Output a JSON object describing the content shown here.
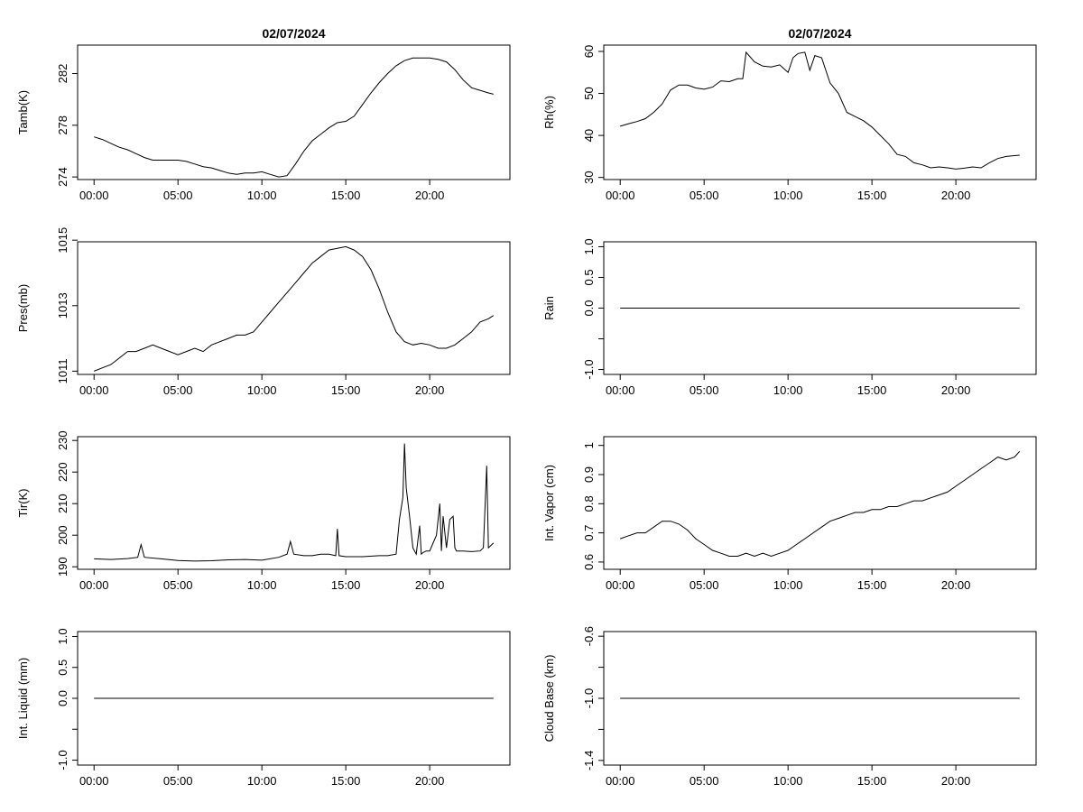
{
  "chart_data": [
    {
      "type": "line",
      "title": "02/07/2024",
      "ylabel": "Tamb(K)",
      "x_ticks": [
        "00:00",
        "05:00",
        "10:00",
        "15:00",
        "20:00"
      ],
      "y_ticks": [
        274,
        278,
        282
      ],
      "ylim": [
        273.8,
        284.2
      ],
      "series": [
        {
          "x": [
            0,
            0.5,
            1,
            1.5,
            2,
            2.5,
            3,
            3.5,
            4,
            4.5,
            5,
            5.5,
            6,
            6.5,
            7,
            7.5,
            8,
            8.5,
            9,
            9.5,
            10,
            10.5,
            11,
            11.5,
            12,
            12.5,
            13,
            13.5,
            14,
            14.5,
            15,
            15.5,
            16,
            16.5,
            17,
            17.5,
            18,
            18.5,
            19,
            19.5,
            20,
            20.5,
            21,
            21.5,
            22,
            22.5,
            23,
            23.5,
            23.8
          ],
          "y": [
            277.1,
            276.9,
            276.6,
            276.3,
            276.1,
            275.8,
            275.5,
            275.3,
            275.3,
            275.3,
            275.3,
            275.2,
            275.0,
            274.8,
            274.7,
            274.5,
            274.3,
            274.2,
            274.3,
            274.3,
            274.4,
            274.2,
            274.0,
            274.1,
            275.0,
            276.0,
            276.8,
            277.3,
            277.8,
            278.2,
            278.3,
            278.7,
            279.6,
            280.5,
            281.3,
            282.0,
            282.6,
            283.0,
            283.2,
            283.2,
            283.2,
            283.1,
            282.9,
            282.3,
            281.5,
            280.9,
            280.7,
            280.5,
            280.4
          ]
        }
      ]
    },
    {
      "type": "line",
      "title": "02/07/2024",
      "ylabel": "Rh(%)",
      "x_ticks": [
        "00:00",
        "05:00",
        "10:00",
        "15:00",
        "20:00"
      ],
      "y_ticks": [
        30,
        40,
        50,
        60
      ],
      "ylim": [
        29.5,
        61.5
      ],
      "series": [
        {
          "x": [
            0,
            0.5,
            1,
            1.5,
            2,
            2.5,
            3,
            3.5,
            4,
            4.5,
            5,
            5.5,
            6,
            6.5,
            7,
            7.3,
            7.5,
            8,
            8.5,
            9,
            9.5,
            10,
            10.3,
            10.6,
            11,
            11.3,
            11.6,
            12,
            12.5,
            13,
            13.5,
            14,
            14.5,
            15,
            15.5,
            16,
            16.5,
            17,
            17.5,
            18,
            18.5,
            19,
            19.5,
            20,
            20.5,
            21,
            21.5,
            22,
            22.5,
            23,
            23.5,
            23.8
          ],
          "y": [
            42.2,
            42.8,
            43.3,
            44.0,
            45.5,
            47.5,
            50.8,
            52.0,
            52.0,
            51.3,
            51.0,
            51.5,
            53.0,
            52.8,
            53.5,
            53.5,
            59.8,
            57.5,
            56.5,
            56.3,
            56.8,
            55.0,
            58.5,
            59.5,
            59.8,
            55.5,
            59.0,
            58.5,
            52.5,
            50.0,
            45.5,
            44.5,
            43.5,
            42.0,
            40.0,
            38.0,
            35.5,
            35.0,
            33.5,
            33.0,
            32.3,
            32.5,
            32.3,
            32.0,
            32.2,
            32.5,
            32.3,
            33.5,
            34.5,
            35.0,
            35.2,
            35.3
          ]
        }
      ]
    },
    {
      "type": "line",
      "ylabel": "Pres(mb)",
      "x_ticks": [
        "00:00",
        "05:00",
        "10:00",
        "15:00",
        "20:00"
      ],
      "y_ticks": [
        1011,
        1013,
        1015
      ],
      "ylim": [
        1010.9,
        1014.95
      ],
      "series": [
        {
          "x": [
            0,
            0.5,
            1,
            1.5,
            2,
            2.5,
            3,
            3.5,
            4,
            4.5,
            5,
            5.5,
            6,
            6.5,
            7,
            7.5,
            8,
            8.5,
            9,
            9.5,
            10,
            10.5,
            11,
            11.5,
            12,
            12.5,
            13,
            13.5,
            14,
            14.5,
            15,
            15.5,
            16,
            16.5,
            17,
            17.5,
            18,
            18.5,
            19,
            19.5,
            20,
            20.5,
            21,
            21.5,
            22,
            22.5,
            23,
            23.5,
            23.8
          ],
          "y": [
            1011.0,
            1011.1,
            1011.2,
            1011.4,
            1011.6,
            1011.6,
            1011.7,
            1011.8,
            1011.7,
            1011.6,
            1011.5,
            1011.6,
            1011.7,
            1011.6,
            1011.8,
            1011.9,
            1012.0,
            1012.1,
            1012.1,
            1012.2,
            1012.5,
            1012.8,
            1013.1,
            1013.4,
            1013.7,
            1014.0,
            1014.3,
            1014.5,
            1014.7,
            1014.75,
            1014.8,
            1014.7,
            1014.5,
            1014.1,
            1013.5,
            1012.8,
            1012.2,
            1011.9,
            1011.8,
            1011.85,
            1011.8,
            1011.7,
            1011.7,
            1011.8,
            1012.0,
            1012.2,
            1012.5,
            1012.6,
            1012.7
          ]
        }
      ]
    },
    {
      "type": "line",
      "ylabel": "Rain",
      "x_ticks": [
        "00:00",
        "05:00",
        "10:00",
        "15:00",
        "20:00"
      ],
      "y_ticks": [
        -1.0,
        -0.5,
        0.0,
        0.5,
        1.0
      ],
      "y_tick_labels": [
        "-1.0",
        "",
        "0.0",
        "0.5",
        "1.0"
      ],
      "ylim": [
        -1.08,
        1.08
      ],
      "series": [
        {
          "x": [
            0,
            23.8
          ],
          "y": [
            0,
            0
          ]
        }
      ]
    },
    {
      "type": "line",
      "ylabel": "Tir(K)",
      "x_ticks": [
        "00:00",
        "05:00",
        "10:00",
        "15:00",
        "20:00"
      ],
      "y_ticks": [
        190,
        200,
        210,
        220,
        230
      ],
      "ylim": [
        189.2,
        231.2
      ],
      "series": [
        {
          "x": [
            0,
            1,
            2,
            2.6,
            2.8,
            3.0,
            4,
            5,
            6,
            7,
            8,
            9,
            10,
            11,
            11.5,
            11.7,
            11.9,
            12.5,
            13,
            13.5,
            14,
            14.4,
            14.5,
            14.6,
            15,
            16,
            17,
            17.5,
            18,
            18.2,
            18.4,
            18.5,
            18.6,
            18.8,
            19.0,
            19.2,
            19.4,
            19.5,
            19.6,
            19.8,
            20,
            20.4,
            20.6,
            20.7,
            20.8,
            21.0,
            21.2,
            21.4,
            21.5,
            21.6,
            21.8,
            22,
            22.5,
            23,
            23.2,
            23.4,
            23.5,
            23.6,
            23.8
          ],
          "y": [
            192.5,
            192.3,
            192.6,
            193.0,
            197.0,
            193.0,
            192.5,
            192.0,
            191.8,
            191.9,
            192.2,
            192.3,
            192.1,
            193.0,
            194.0,
            198.0,
            194.0,
            193.5,
            193.5,
            194.0,
            194.0,
            193.5,
            202.0,
            193.5,
            193.2,
            193.2,
            193.5,
            193.5,
            194.0,
            205.0,
            212.0,
            229.0,
            215.0,
            206.0,
            196.0,
            194.0,
            203.0,
            194.0,
            194.5,
            195.0,
            195.0,
            200.0,
            210.0,
            195.0,
            206.0,
            196.0,
            205.0,
            206.0,
            196.0,
            195.0,
            195.0,
            195.0,
            194.8,
            195.0,
            196.0,
            222.0,
            196.0,
            196.5,
            197.5
          ]
        }
      ]
    },
    {
      "type": "line",
      "ylabel": "Int. Vapor (cm)",
      "x_ticks": [
        "00:00",
        "05:00",
        "10:00",
        "15:00",
        "20:00"
      ],
      "y_ticks": [
        0.6,
        0.7,
        0.8,
        0.9,
        1.0
      ],
      "ylim": [
        0.575,
        1.03
      ],
      "series": [
        {
          "x": [
            0,
            0.5,
            1,
            1.5,
            2,
            2.5,
            3,
            3.5,
            4,
            4.5,
            5,
            5.5,
            6,
            6.5,
            7,
            7.5,
            8,
            8.5,
            9,
            9.5,
            10,
            10.5,
            11,
            11.5,
            12,
            12.5,
            13,
            13.5,
            14,
            14.5,
            15,
            15.5,
            16,
            16.5,
            17,
            17.5,
            18,
            18.5,
            19,
            19.5,
            20,
            20.5,
            21,
            21.5,
            22,
            22.5,
            23,
            23.5,
            23.8
          ],
          "y": [
            0.68,
            0.69,
            0.7,
            0.7,
            0.72,
            0.74,
            0.74,
            0.73,
            0.71,
            0.68,
            0.66,
            0.64,
            0.63,
            0.62,
            0.62,
            0.63,
            0.62,
            0.63,
            0.62,
            0.63,
            0.64,
            0.66,
            0.68,
            0.7,
            0.72,
            0.74,
            0.75,
            0.76,
            0.77,
            0.77,
            0.78,
            0.78,
            0.79,
            0.79,
            0.8,
            0.81,
            0.81,
            0.82,
            0.83,
            0.84,
            0.86,
            0.88,
            0.9,
            0.92,
            0.94,
            0.96,
            0.95,
            0.96,
            0.98
          ]
        }
      ]
    },
    {
      "type": "line",
      "ylabel": "Int. Liquid (mm)",
      "x_ticks": [
        "00:00",
        "05:00",
        "10:00",
        "15:00",
        "20:00"
      ],
      "y_ticks": [
        -1.0,
        -0.5,
        0.0,
        0.5,
        1.0
      ],
      "y_tick_labels": [
        "-1.0",
        "",
        "0.0",
        "0.5",
        "1.0"
      ],
      "ylim": [
        -1.08,
        1.08
      ],
      "series": [
        {
          "x": [
            0,
            23.8
          ],
          "y": [
            0,
            0
          ]
        }
      ]
    },
    {
      "type": "line",
      "ylabel": "Cloud Base (km)",
      "x_ticks": [
        "00:00",
        "05:00",
        "10:00",
        "15:00",
        "20:00"
      ],
      "y_ticks": [
        -1.4,
        -1.2,
        -1.0,
        -0.8,
        -0.6
      ],
      "y_tick_labels": [
        "-1.4",
        "",
        "-1.0",
        "",
        "-0.6"
      ],
      "ylim": [
        -1.43,
        -0.57
      ],
      "series": [
        {
          "x": [
            0,
            23.8
          ],
          "y": [
            -1.0,
            -1.0
          ]
        }
      ]
    }
  ]
}
